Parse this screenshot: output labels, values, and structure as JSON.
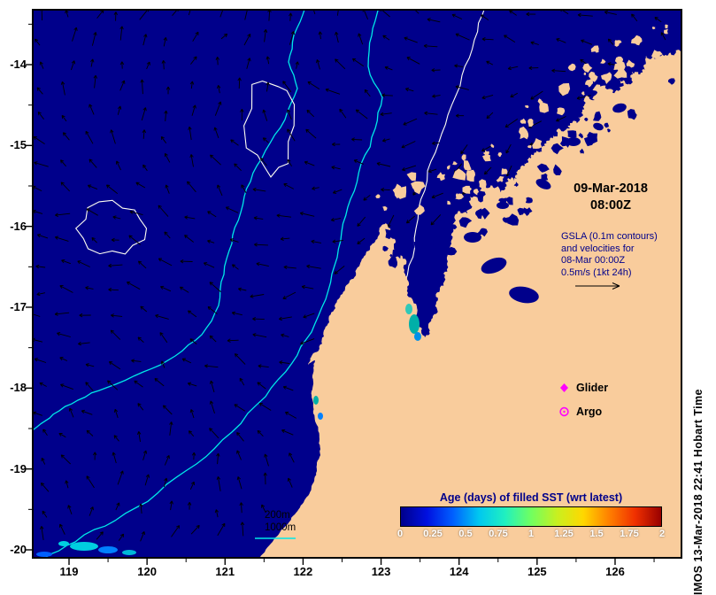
{
  "colors": {
    "ocean": "#00008B",
    "land": "#F9CC9C",
    "bathy_contour": "#00E8E8",
    "gsla_contour": "#FFFFF2",
    "arrow": "#000000",
    "annotation_blue": "#00008B",
    "marker_magenta": "#FF00FF",
    "colorbar_stops": [
      "#00008B",
      "#0010E0",
      "#0060FF",
      "#00C8F0",
      "#20F0C0",
      "#70FF60",
      "#C8F020",
      "#FFD800",
      "#FF8000",
      "#F03000",
      "#980000"
    ]
  },
  "axes": {
    "y_ticks": [
      "-14",
      "-15",
      "-16",
      "-17",
      "-18",
      "-19",
      "-20"
    ],
    "x_ticks": [
      "119",
      "120",
      "121",
      "122",
      "123",
      "124",
      "125",
      "126"
    ]
  },
  "annotations": {
    "date_line1": "09-Mar-2018",
    "date_line2": "08:00Z",
    "gsla_lines": [
      "GSLA (0.1m contours)",
      "and velocities for",
      "08-Mar 00:00Z",
      "0.5m/s (1kt 24h)"
    ],
    "depth_200": "200m",
    "depth_1000": "1000m",
    "watermark": "IMOS 13-Mar-2018 22:41 Hobart Time"
  },
  "legend": {
    "glider": "Glider",
    "argo": "Argo"
  },
  "colorbar": {
    "title": "Age (days) of filled SST (wrt latest)",
    "ticks": [
      "0",
      "0.25",
      "0.5",
      "0.75",
      "1",
      "1.25",
      "1.5",
      "1.75",
      "2"
    ],
    "min": 0,
    "max": 2
  }
}
